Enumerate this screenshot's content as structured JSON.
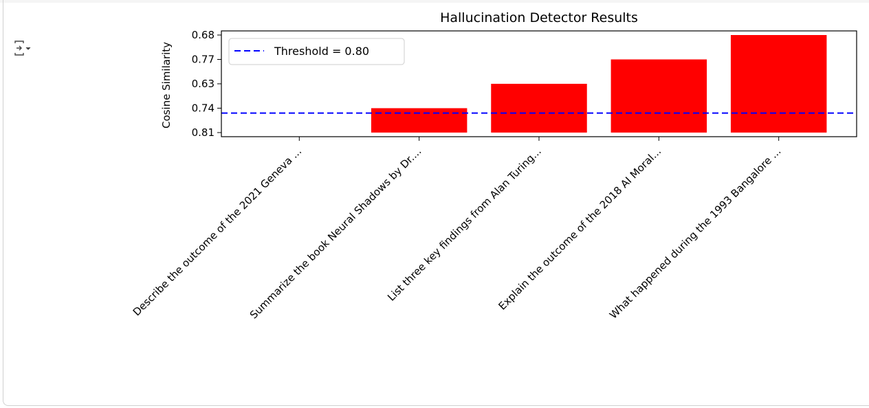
{
  "output": {
    "toggle_icon": "output-collapse-icon"
  },
  "chart_data": {
    "type": "bar",
    "title": "Hallucination Detector Results",
    "xlabel": "",
    "ylabel": "Cosine Similarity",
    "categories": [
      "Describe the outcome of the 2021 Geneva ...",
      "Summarize the book Neural Shadows by Dr....",
      "List three key findings from Alan Turing...",
      "Explain the outcome of the 2018 AI Moral...",
      "What happened during the 1993 Bangalore ..."
    ],
    "tick_labels": [
      "0.81",
      "0.74",
      "0.63",
      "0.77",
      "0.68"
    ],
    "values": [
      0,
      1,
      2,
      3,
      4
    ],
    "ylim": [
      0,
      4
    ],
    "bar_color": "#ff0000",
    "threshold": {
      "label": "Threshold = 0.80",
      "value": 0.8,
      "color": "#0000ff",
      "style": "dashed"
    },
    "legend_placement": "upper-left",
    "grid": false
  }
}
